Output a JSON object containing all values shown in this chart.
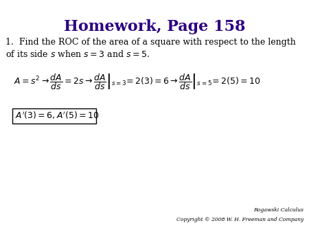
{
  "title": "Homework, Page 158",
  "title_color": "#2b0080",
  "title_fontsize": 16,
  "background_color": "#ffffff",
  "problem_text_line1": "1.  Find the ROC of the area of a square with respect to the length",
  "problem_text_line2": "of its side $s$ when $s = 3$ and $s = 5$.",
  "math_formula": "$A = s^2 \\rightarrow \\dfrac{dA}{ds} = 2s \\rightarrow \\left.\\dfrac{dA}{ds}\\right|_{s=3} \\!= 2(3) = 6 \\rightarrow \\left.\\dfrac{dA}{ds}\\right|_{s=5} \\!= 2(5) = 10$",
  "answer_box": "$A'(3) = 6, A'(5) = 10$",
  "copyright_line1": "Rogawski Calculus",
  "copyright_line2": "Copyright © 2008 W. H. Freeman and Company",
  "text_color": "#000000",
  "formula_fontsize": 9,
  "problem_fontsize": 9,
  "answer_fontsize": 9,
  "copyright_fontsize": 5.5
}
